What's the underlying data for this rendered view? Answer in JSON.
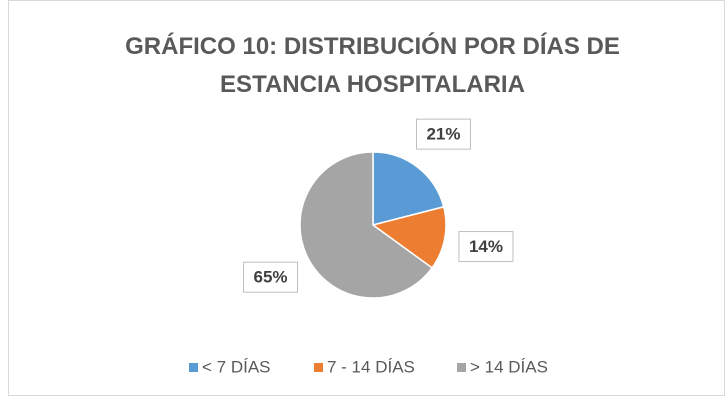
{
  "chart_data": {
    "type": "pie",
    "title": "GRÁFICO 10: DISTRIBUCIÓN POR DÍAS DE ESTANCIA HOSPITALARIA",
    "categories": [
      "< 7 DÍAS",
      "7 - 14 DÍAS",
      "> 14 DÍAS"
    ],
    "values": [
      21,
      14,
      65
    ],
    "value_labels": [
      "21%",
      "14%",
      "65%"
    ],
    "colors": [
      "#5b9bd5",
      "#ed7d31",
      "#a5a5a5"
    ],
    "legend": "bottom"
  }
}
